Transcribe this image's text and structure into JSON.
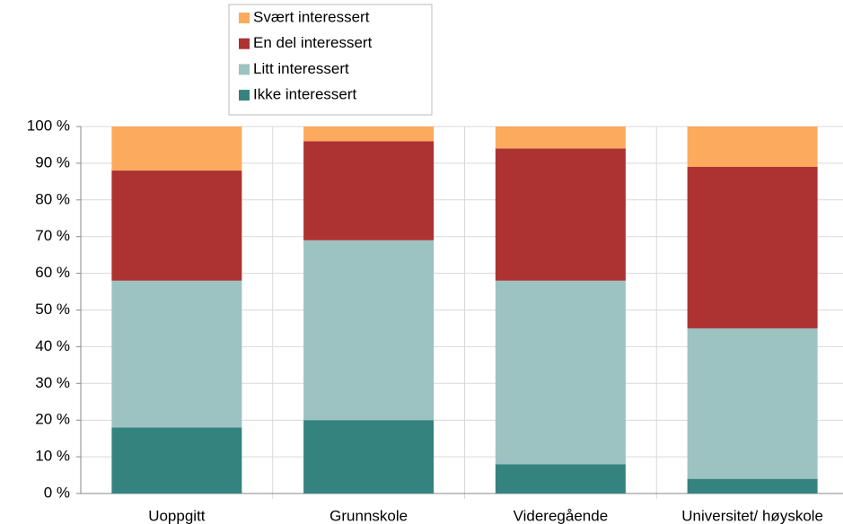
{
  "chart_data": {
    "type": "stacked_bar",
    "categories": [
      "Uoppgitt",
      "Grunnskole",
      "Videregående",
      "Universitet/ høyskole"
    ],
    "series": [
      {
        "name": "Ikke interessert",
        "color": "#35837f",
        "values": [
          18,
          20,
          8,
          4
        ]
      },
      {
        "name": "Litt interessert",
        "color": "#9cc2c2",
        "values": [
          40,
          49,
          50,
          41
        ]
      },
      {
        "name": "En del interessert",
        "color": "#ad3232",
        "values": [
          30,
          27,
          36,
          44
        ]
      },
      {
        "name": "Svært interessert",
        "color": "#fcaa5d",
        "values": [
          12,
          4,
          6,
          11
        ]
      }
    ],
    "ylim": [
      0,
      100
    ],
    "yticks": [
      {
        "value": 0,
        "label": "0 %"
      },
      {
        "value": 10,
        "label": "10 %"
      },
      {
        "value": 20,
        "label": "20 %"
      },
      {
        "value": 30,
        "label": "30 %"
      },
      {
        "value": 40,
        "label": "40 %"
      },
      {
        "value": 50,
        "label": "50 %"
      },
      {
        "value": 60,
        "label": "60 %"
      },
      {
        "value": 70,
        "label": "70 %"
      },
      {
        "value": 80,
        "label": "80 %"
      },
      {
        "value": 90,
        "label": "90 %"
      },
      {
        "value": 100,
        "label": "100 %"
      }
    ],
    "grid": true,
    "legend": "top"
  }
}
